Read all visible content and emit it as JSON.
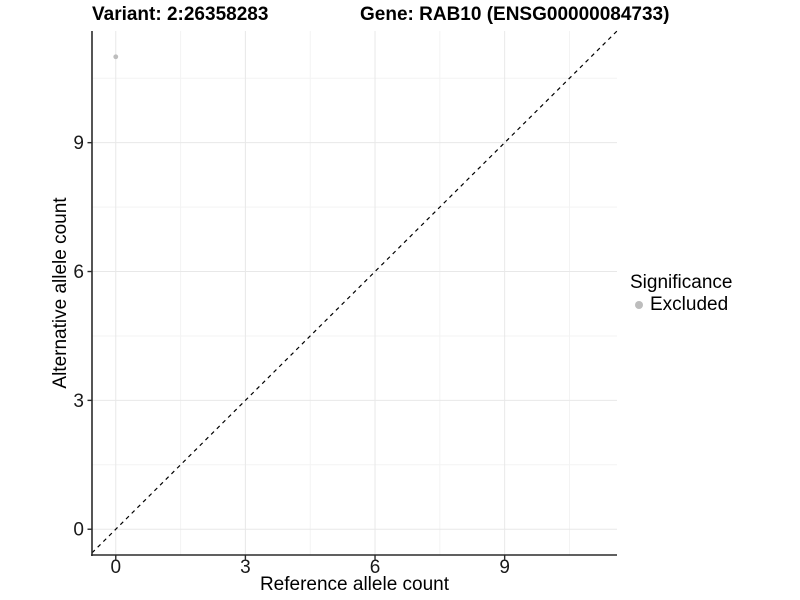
{
  "chart_data": {
    "type": "scatter",
    "titles": {
      "left": "Variant: 2:26358283",
      "right": "Gene: RAB10 (ENSG00000084733)"
    },
    "xlabel": "Reference allele count",
    "ylabel": "Alternative allele count",
    "x_ticks": [
      0,
      3,
      6,
      9
    ],
    "y_ticks": [
      0,
      3,
      6,
      9
    ],
    "x_minor_ticks": [
      1.5,
      4.5,
      7.5,
      10.5
    ],
    "y_minor_ticks": [
      1.5,
      4.5,
      7.5,
      10.5
    ],
    "xlim": [
      -0.55,
      11.6
    ],
    "ylim": [
      -0.6,
      11.6
    ],
    "grid": "faint major and minor gridlines, white background",
    "points": [
      {
        "x": 0,
        "y": 11,
        "significance": "Excluded",
        "color": "#bdbdbd",
        "radius": 2.4
      }
    ],
    "identity_line": {
      "equation": "y = x",
      "style": "dashed",
      "color": "#000000"
    },
    "legend": {
      "title": "Significance",
      "position": "right",
      "items": [
        {
          "label": "Excluded",
          "color": "#bdbdbd",
          "marker": "circle",
          "marker_radius": 4
        }
      ]
    }
  },
  "colors": {
    "background": "#ffffff",
    "axis_line": "#2b2b2b",
    "tick_mark": "#2b2b2b",
    "tick_text": "#1a1a1a",
    "grid_major": "#e8e8e8",
    "grid_minor": "#f3f3f3"
  }
}
